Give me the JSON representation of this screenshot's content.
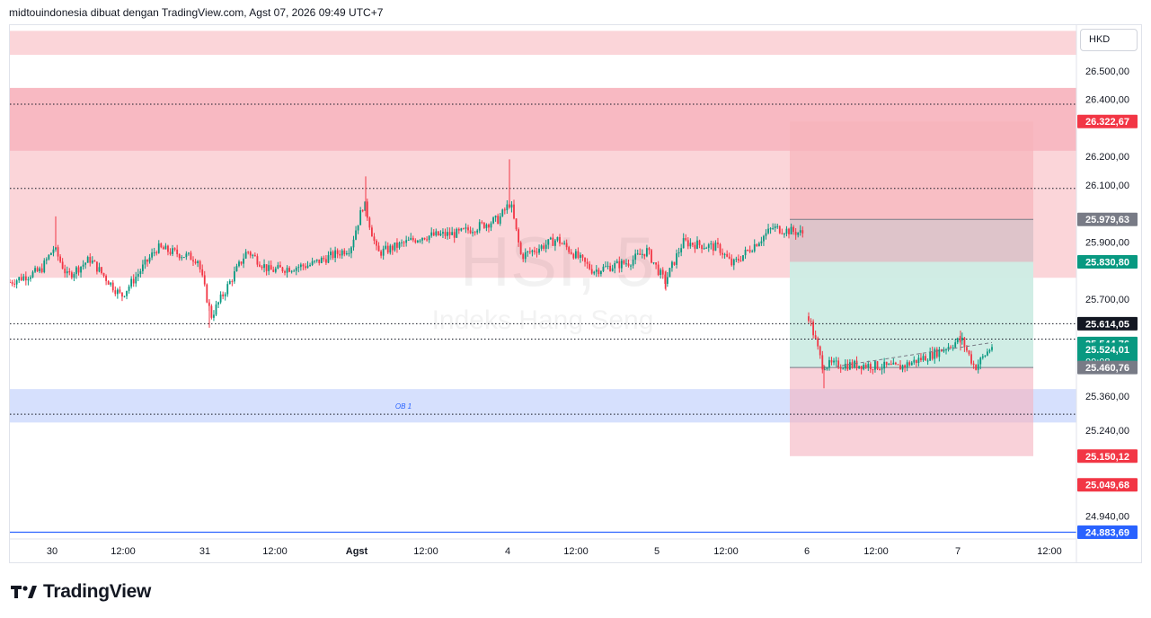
{
  "header": {
    "text": "midtouindonesia dibuat dengan TradingView.com, Agst 07, 2026 09:49 UTC+7"
  },
  "currency": "HKD",
  "watermark": {
    "symbol": "HSI, 5",
    "name": "Indeks Hang Seng"
  },
  "brand": "TradingView",
  "colors": {
    "up": "#089981",
    "down": "#f23645",
    "supply_zone": "#fbd5d9",
    "demand_zone": "#d6e0fd",
    "price_label_bg": "#131722",
    "green_label": "#089981",
    "red_label": "#f23645",
    "gray_label": "#787b86",
    "blue_label": "#2962ff"
  },
  "chart_data": {
    "type": "candlestick",
    "symbol": "HSI",
    "interval": "5",
    "currency": "HKD",
    "y_range": [
      24860,
      26660
    ],
    "y_ticks": [
      "26.500,00",
      "26.400,00",
      "26.200,00",
      "26.100,00",
      "25.900,00",
      "25.700,00",
      "25.360,00",
      "25.240,00",
      "24.940,00"
    ],
    "y_tick_values": [
      26500,
      26400,
      26200,
      26100,
      25900,
      25700,
      25360,
      25240,
      24940
    ],
    "x_ticks": [
      "30",
      "12:00",
      "31",
      "12:00",
      "Agst",
      "12:00",
      "4",
      "12:00",
      "5",
      "12:00",
      "6",
      "12:00",
      "7",
      "12:00"
    ],
    "x_tick_bold": [
      false,
      false,
      false,
      false,
      true,
      false,
      false,
      false,
      false,
      false,
      false,
      false,
      false,
      false
    ],
    "x_start": "Jul 30",
    "x_end": "Aug 07 12:00",
    "price_summary": {
      "last": 25614.05,
      "high": 26190,
      "low": 25388
    },
    "price_labels": [
      {
        "text": "26.322,67",
        "value": 26322.67,
        "color": "red"
      },
      {
        "text": "25.979,63",
        "value": 25979.63,
        "color": "gray"
      },
      {
        "text": "25.830,80",
        "value": 25830.8,
        "color": "green"
      },
      {
        "text": "25.614,05",
        "value": 25614.05,
        "color": "black"
      },
      {
        "text": "25.544,76",
        "value": 25544.76,
        "color": "green"
      },
      {
        "text": "25.524,01",
        "value": 25524.01,
        "color": "green",
        "sub": "00:08"
      },
      {
        "text": "25.460,76",
        "value": 25460.76,
        "color": "gray"
      },
      {
        "text": "25.150,12",
        "value": 25150.12,
        "color": "red"
      },
      {
        "text": "25.049,68",
        "value": 25049.68,
        "color": "red"
      },
      {
        "text": "24.883,69",
        "value": 24883.69,
        "color": "blue"
      }
    ],
    "zones": [
      {
        "type": "supply",
        "from": 26556,
        "to": 26640
      },
      {
        "type": "supply",
        "from": 25775,
        "to": 26440
      },
      {
        "type": "demand",
        "from": 25268,
        "to": 25385,
        "label": "OB 1"
      }
    ],
    "position": {
      "entry": 25460.76,
      "take_profit": 26322.67,
      "stop_loss": 25150.12
    },
    "horizontal_lines": [
      26383,
      26088,
      25614.05,
      25560,
      25297,
      24883.69
    ]
  }
}
